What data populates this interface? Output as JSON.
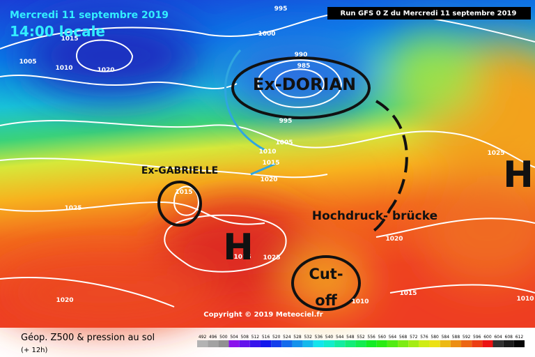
{
  "header": {
    "date": "Mercredi 11 septembre 2019",
    "time": "14:00 locale",
    "run": "Run GFS 0 Z du Mercredi 11 septembre 2019"
  },
  "isobar_labels": [
    995,
    1000,
    1015,
    1005,
    1010,
    1020,
    990,
    985,
    995,
    1005,
    1010,
    1015,
    1020,
    1025,
    1015,
    1025,
    1020,
    1015,
    1025,
    1020,
    1010,
    1015,
    1010
  ],
  "annotations": {
    "ex_dorian": "Ex-DORIAN",
    "ex_gabrielle": "Ex-GABRIELLE",
    "high_east": "H",
    "high_west": "H",
    "hochdruck": "Hochdruck- brücke",
    "cutoff_top": "Cut-",
    "cutoff_bottom": "off"
  },
  "footer": {
    "copyright": "Copyright © 2019 Meteociel.fr",
    "title": "Géop. Z500 & pression au sol",
    "lead": "(+ 12h)",
    "scale": [
      492,
      496,
      500,
      504,
      508,
      512,
      516,
      520,
      524,
      528,
      532,
      536,
      540,
      544,
      548,
      552,
      556,
      560,
      564,
      568,
      572,
      576,
      580,
      584,
      588,
      592,
      596,
      600,
      604,
      608,
      612
    ]
  }
}
